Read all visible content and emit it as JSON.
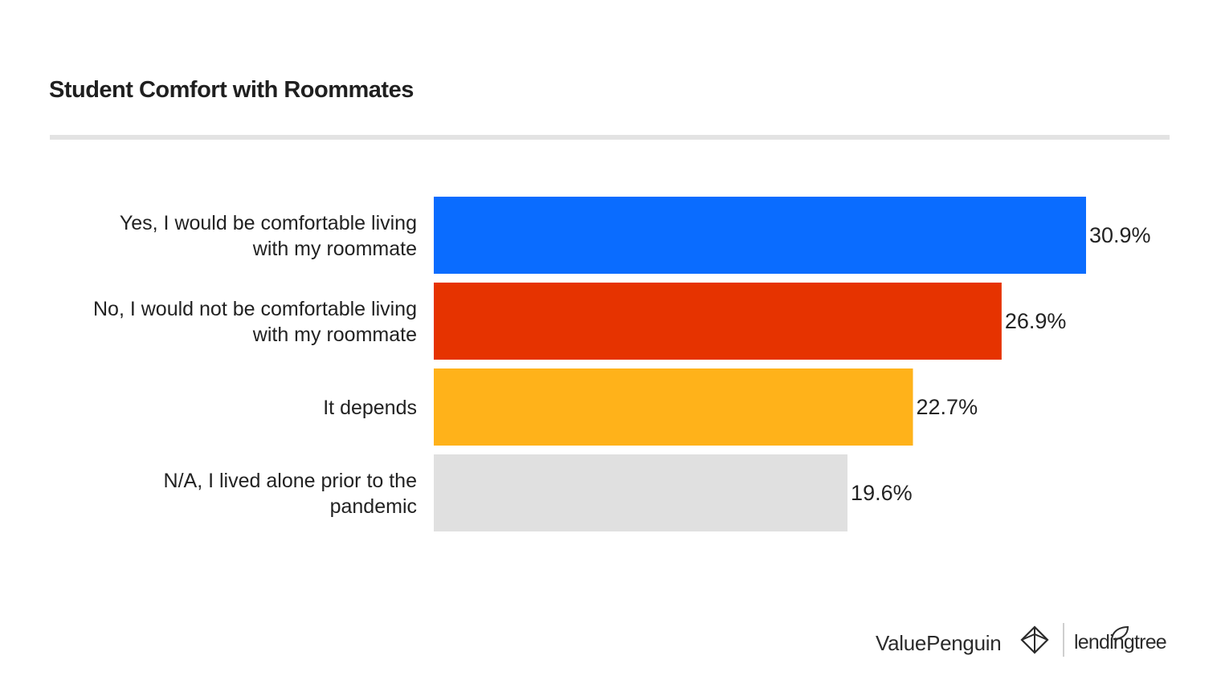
{
  "chart_data": {
    "type": "bar",
    "orientation": "horizontal",
    "title": "Student Comfort with Roommates",
    "categories": [
      [
        "Yes, I would be comfortable living",
        "with my roommate"
      ],
      [
        "No, I would not be comfortable living",
        "with my roommate"
      ],
      [
        "It depends"
      ],
      [
        "N/A, I lived alone prior to the",
        "pandemic"
      ]
    ],
    "values": [
      30.9,
      26.9,
      22.7,
      19.6
    ],
    "value_labels": [
      "30.9%",
      "26.9%",
      "22.7%",
      "19.6%"
    ],
    "colors": [
      "#0a6cff",
      "#e63300",
      "#ffb21a",
      "#e0e0e0"
    ],
    "xlabel": "",
    "ylabel": "",
    "xlim": [
      0,
      30.9
    ],
    "grid": false
  },
  "footer": {
    "brand_1": "ValuePenguin",
    "brand_2": "lendingtree"
  }
}
